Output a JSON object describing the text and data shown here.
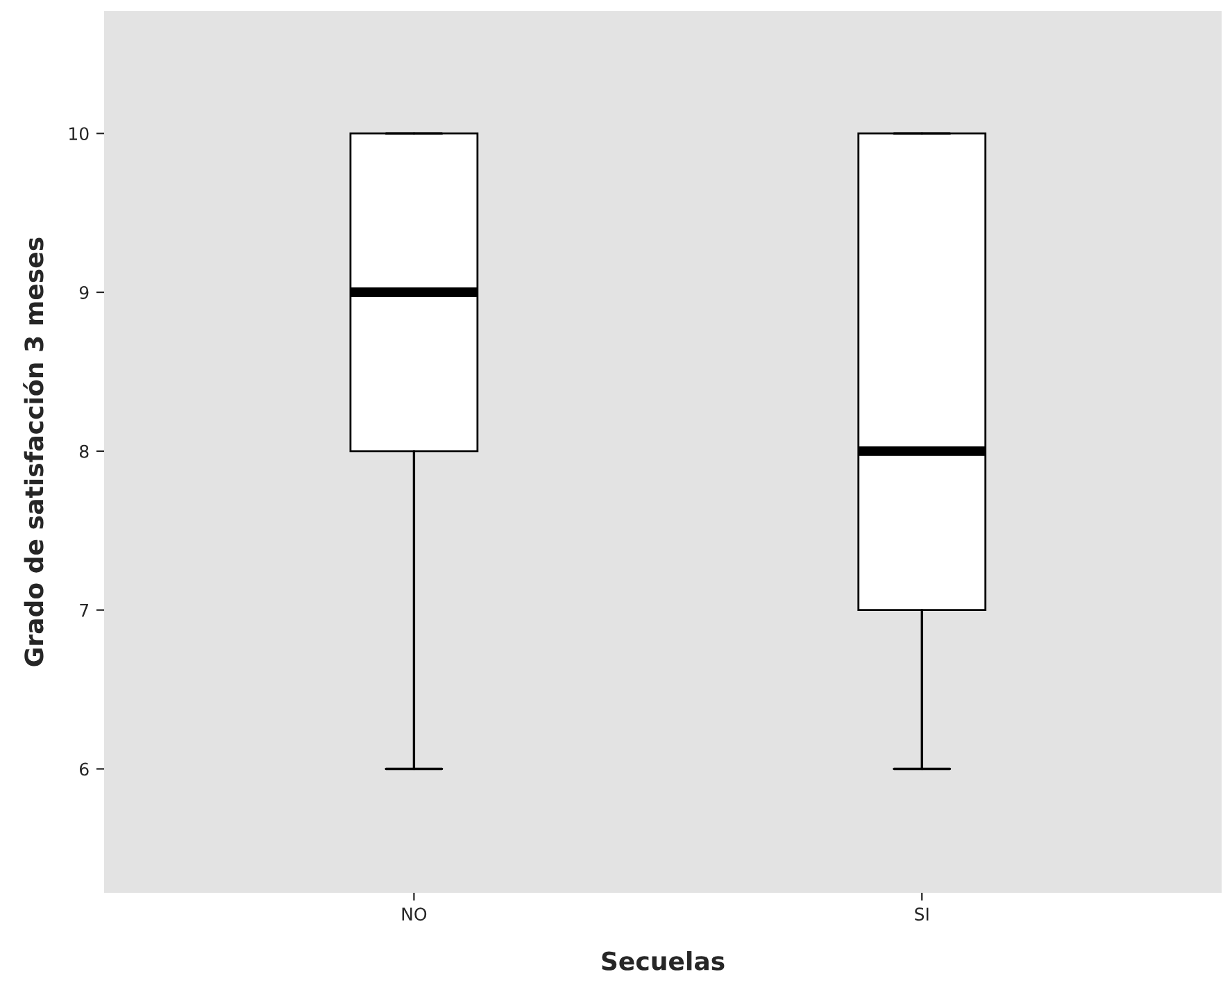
{
  "chart_data": {
    "type": "box",
    "xlabel": "Secuelas",
    "ylabel": "Grado de satisfacción 3 meses",
    "categories": [
      "NO",
      "SI"
    ],
    "boxes": [
      {
        "low": 6,
        "q1": 8,
        "median": 9,
        "q3": 10,
        "high": 10
      },
      {
        "low": 6,
        "q1": 7,
        "median": 8,
        "q3": 10,
        "high": 10
      }
    ],
    "ylim": [
      5.22,
      10.77
    ],
    "yticks": [
      6,
      7,
      8,
      9,
      10
    ],
    "grid": false
  }
}
